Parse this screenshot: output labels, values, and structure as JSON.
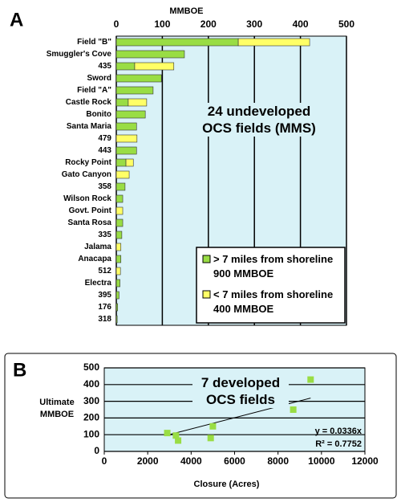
{
  "chart_data": [
    {
      "panel": "A",
      "type": "bar",
      "orientation": "horizontal",
      "stacked": true,
      "xlabel": "MMBOE",
      "annotation": "24 undeveloped OCS fields (MMS)",
      "categories": [
        "Field \"B\"",
        "Smuggler's Cove",
        "435",
        "Sword",
        "Field \"A\"",
        "Castle Rock",
        "Bonito",
        "Santa Maria",
        "479",
        "443",
        "Rocky Point",
        "Gato Canyon",
        "358",
        "Wilson Rock",
        "Govt. Point",
        "Santa Rosa",
        "335",
        "Jalama",
        "Anacapa",
        "512",
        "Electra",
        "395",
        "176",
        "318"
      ],
      "series": [
        {
          "name": "> 7 miles from shoreline 900 MMBOE",
          "color": "#99dd44",
          "values": [
            265,
            148,
            40,
            98,
            80,
            26,
            63,
            44,
            0,
            44,
            21,
            0,
            19,
            14,
            0,
            14,
            12,
            0,
            10,
            0,
            8,
            6,
            3,
            2
          ]
        },
        {
          "name": "< 7 miles from shoreline 400 MMBOE",
          "color": "#ffff66",
          "values": [
            155,
            0,
            85,
            0,
            0,
            40,
            0,
            0,
            45,
            0,
            16,
            28,
            0,
            0,
            14,
            0,
            0,
            10,
            0,
            9,
            0,
            0,
            0,
            0
          ]
        }
      ],
      "xlim": [
        0,
        500
      ],
      "xticks": [
        0,
        100,
        200,
        300,
        400,
        500
      ],
      "grid": true,
      "legend": "lower right",
      "background": "#d9f2f7"
    },
    {
      "panel": "B",
      "type": "scatter",
      "xlabel": "Closure (Acres)",
      "ylabel": "Ultimate MMBOE",
      "annotation": "7 developed OCS fields",
      "x": [
        2900,
        3300,
        3400,
        4900,
        5000,
        8700,
        9500
      ],
      "values": [
        110,
        95,
        65,
        80,
        150,
        250,
        430
      ],
      "color": "#99dd44",
      "xlim": [
        0,
        12000
      ],
      "xticks": [
        0,
        2000,
        4000,
        6000,
        8000,
        10000,
        12000
      ],
      "ylim": [
        0,
        500
      ],
      "yticks": [
        0,
        100,
        200,
        300,
        400,
        500
      ],
      "grid": true,
      "background": "#d9f2f7",
      "trendline": {
        "equation": "y = 0.0336x",
        "slope": 0.0336,
        "r2": "R² = 0.7752"
      }
    }
  ]
}
